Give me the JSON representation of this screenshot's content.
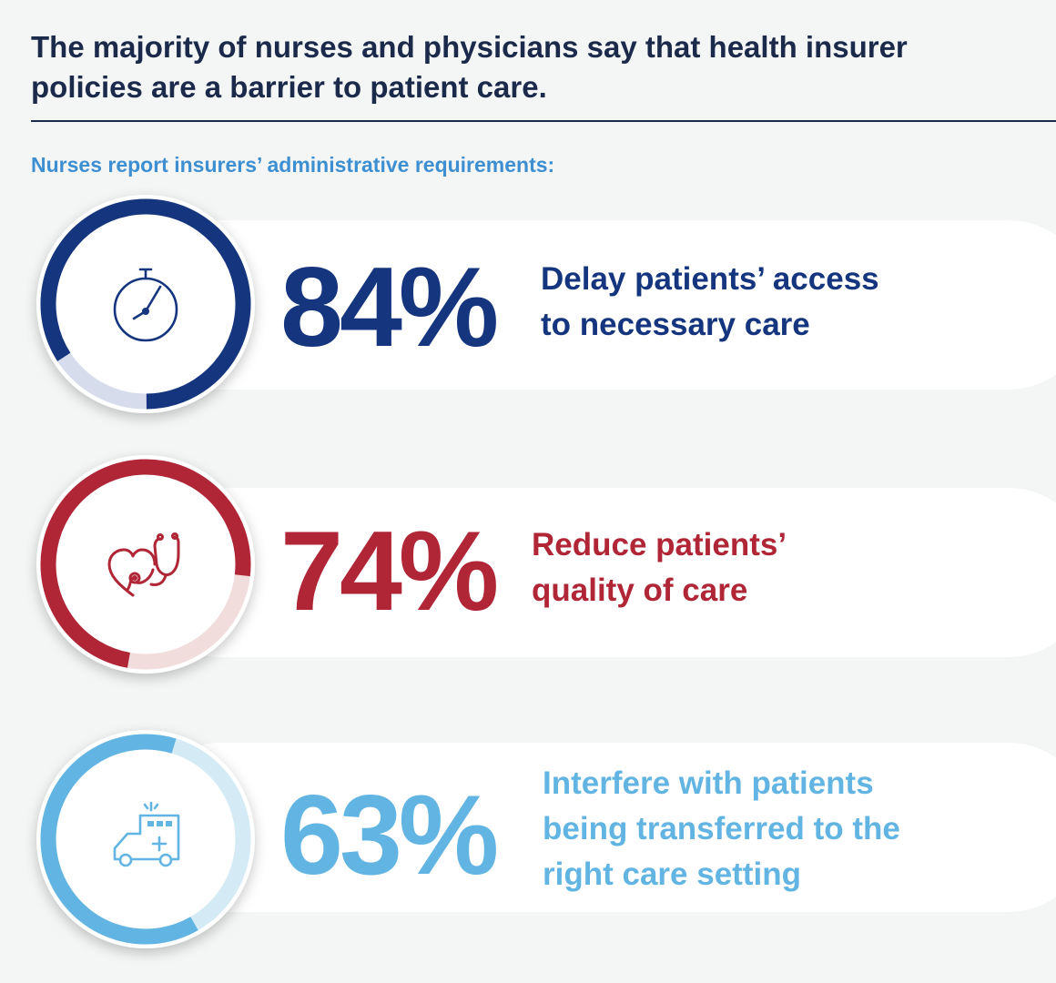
{
  "header": {
    "title": "The majority of nurses and physicians say that health insurer policies are a barrier to patient care.",
    "subtitle": "Nurses report insurers’ administrative requirements:"
  },
  "chart_data": {
    "type": "donut",
    "title": "The majority of nurses and physicians say that health insurer policies are a barrier to patient care.",
    "subtitle": "Nurses report insurers’ administrative requirements:",
    "unit": "%",
    "items": [
      {
        "value": 84,
        "label": "84%",
        "lines": [
          "Delay patients’ access",
          "to necessary care"
        ],
        "icon": "stopwatch-icon",
        "color": "#15367f",
        "track_color": "#d6dcec"
      },
      {
        "value": 74,
        "label": "74%",
        "lines": [
          "Reduce patients’",
          "quality of care"
        ],
        "icon": "heart-stethoscope-icon",
        "color": "#b02637",
        "track_color": "#f2dddd"
      },
      {
        "value": 63,
        "label": "63%",
        "lines": [
          "Interfere with patients",
          "being transferred to the",
          "right care setting"
        ],
        "icon": "ambulance-icon",
        "color": "#62b5e3",
        "track_color": "#d4ebf5"
      }
    ]
  }
}
